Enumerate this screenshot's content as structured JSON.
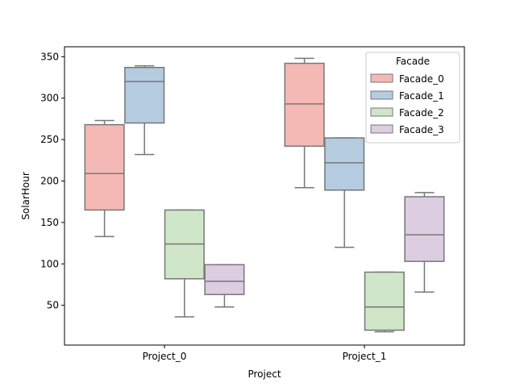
{
  "chart_data": {
    "type": "box",
    "title": "",
    "xlabel": "Project",
    "ylabel": "SolarHour",
    "categories": [
      "Project_0",
      "Project_1"
    ],
    "ylim": [
      2,
      362
    ],
    "yticks": [
      50,
      100,
      150,
      200,
      250,
      300,
      350
    ],
    "legend": {
      "title": "Facade",
      "position": "top-right"
    },
    "series": [
      {
        "name": "Facade_0",
        "color": "#f4b8b5",
        "boxes": [
          {
            "whisker_low": 133,
            "q1": 165,
            "median": 209,
            "q3": 268,
            "whisker_high": 273
          },
          {
            "whisker_low": 192,
            "q1": 242,
            "median": 293,
            "q3": 342,
            "whisker_high": 348
          }
        ]
      },
      {
        "name": "Facade_1",
        "color": "#b5cbe0",
        "boxes": [
          {
            "whisker_low": 232,
            "q1": 270,
            "median": 320,
            "q3": 337,
            "whisker_high": 339
          },
          {
            "whisker_low": 120,
            "q1": 189,
            "median": 222,
            "q3": 252,
            "whisker_high": 252
          }
        ]
      },
      {
        "name": "Facade_2",
        "color": "#cfe6c8",
        "boxes": [
          {
            "whisker_low": 36,
            "q1": 82,
            "median": 124,
            "q3": 165,
            "whisker_high": 165
          },
          {
            "whisker_low": 18,
            "q1": 20,
            "median": 48,
            "q3": 90,
            "whisker_high": 90
          }
        ]
      },
      {
        "name": "Facade_3",
        "color": "#dccde1",
        "boxes": [
          {
            "whisker_low": 48,
            "q1": 63,
            "median": 79,
            "q3": 99,
            "whisker_high": 99
          },
          {
            "whisker_low": 66,
            "q1": 103,
            "median": 135,
            "q3": 181,
            "whisker_high": 186
          }
        ]
      }
    ]
  }
}
